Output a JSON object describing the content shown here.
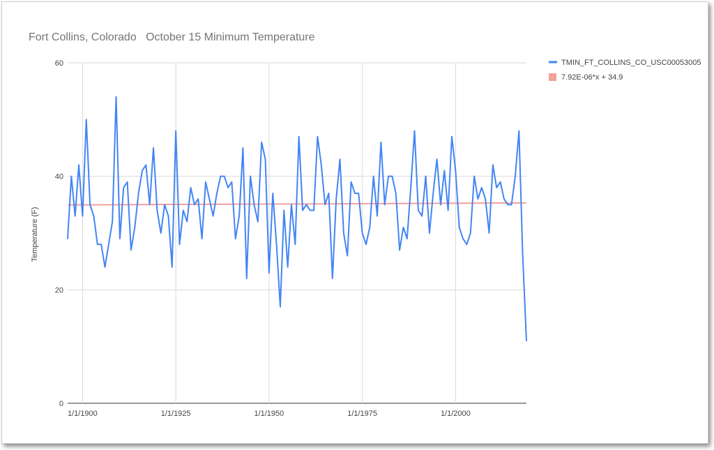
{
  "chart_data": {
    "type": "line",
    "title": "Fort Collins, Colorado   October 15 Minimum Temperature",
    "xlabel": "",
    "ylabel": "Temperature (F)",
    "ylim": [
      0,
      60
    ],
    "xlim": [
      1896,
      2019
    ],
    "yticks": [
      0,
      20,
      40,
      60
    ],
    "xticks": [
      {
        "year": 1900,
        "label": "1/1/1900"
      },
      {
        "year": 1925,
        "label": "1/1/1925"
      },
      {
        "year": 1950,
        "label": "1/1/1950"
      },
      {
        "year": 1975,
        "label": "1/1/1975"
      },
      {
        "year": 2000,
        "label": "1/1/2000"
      }
    ],
    "grid": true,
    "legend_position": "right",
    "series": [
      {
        "name": "TMIN_FT_COLLINS_CO_USC00053005",
        "color": "#4285f4",
        "x_start": 1896,
        "values": [
          29,
          40,
          33,
          42,
          33,
          50,
          35,
          33,
          28,
          28,
          24,
          28,
          32,
          54,
          29,
          38,
          39,
          27,
          31,
          37,
          41,
          42,
          35,
          45,
          34,
          30,
          35,
          33,
          24,
          48,
          28,
          34,
          32,
          38,
          35,
          36,
          29,
          39,
          36,
          33,
          37,
          40,
          40,
          38,
          39,
          29,
          33,
          45,
          22,
          40,
          35,
          32,
          46,
          43,
          23,
          37,
          28,
          17,
          34,
          24,
          35,
          28,
          47,
          34,
          35,
          34,
          34,
          47,
          42,
          35,
          37,
          22,
          36,
          43,
          30,
          26,
          39,
          37,
          37,
          30,
          28,
          31,
          40,
          33,
          46,
          35,
          40,
          40,
          37,
          27,
          31,
          29,
          38,
          48,
          34,
          33,
          40,
          30,
          37,
          43,
          35,
          41,
          34,
          47,
          41,
          31,
          29,
          28,
          30,
          40,
          36,
          38,
          36,
          30,
          42,
          38,
          39,
          36,
          35,
          35,
          40,
          48,
          26,
          11
        ]
      },
      {
        "name": "7.92E-06*x + 34.9",
        "color": "#f4a09b",
        "type": "trendline",
        "x": [
          1896,
          2019
        ],
        "values": [
          34.95,
          35.3
        ]
      }
    ]
  }
}
